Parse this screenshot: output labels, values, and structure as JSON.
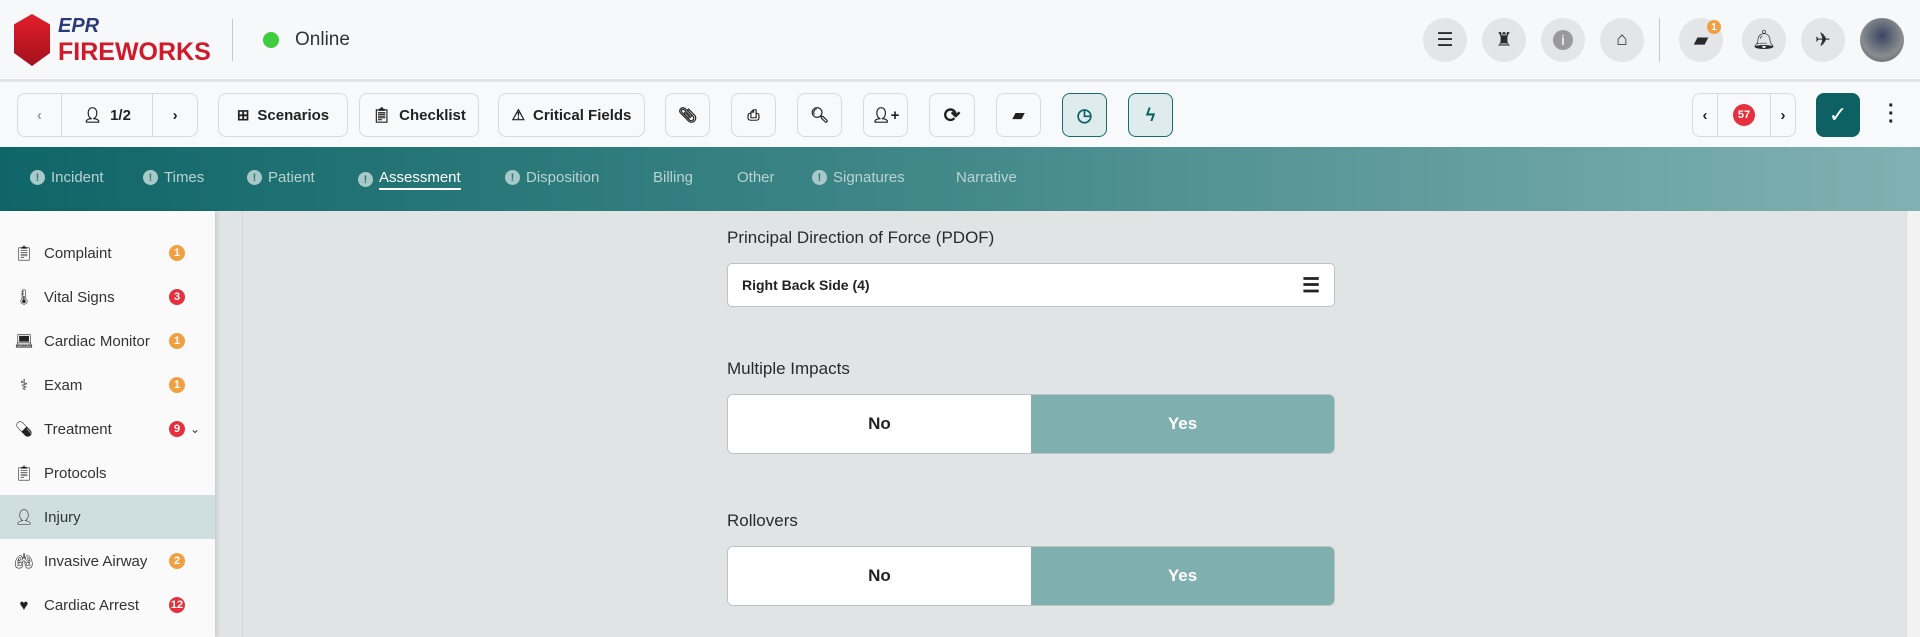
{
  "header": {
    "logo_top": "EPR",
    "logo_bottom": "FIREWORKS",
    "status": "Online",
    "status_color": "#3fcc3f",
    "icons": [
      "list-icon",
      "chess-rook-icon",
      "info-icon",
      "home-icon",
      "chat-icon",
      "bell-icon",
      "airplane-icon"
    ],
    "chat_badge": "1"
  },
  "toolbar": {
    "page": "1/2",
    "scenarios": "Scenarios",
    "checklist": "Checklist",
    "critical_fields": "Critical Fields",
    "error_count": "57"
  },
  "tabs": [
    {
      "label": "Incident",
      "alert": true
    },
    {
      "label": "Times",
      "alert": true
    },
    {
      "label": "Patient",
      "alert": true
    },
    {
      "label": "Assessment",
      "alert": true,
      "active": true
    },
    {
      "label": "Disposition",
      "alert": true
    },
    {
      "label": "Billing"
    },
    {
      "label": "Other"
    },
    {
      "label": "Signatures",
      "alert": true
    },
    {
      "label": "Narrative"
    }
  ],
  "sidebar": {
    "items": [
      {
        "label": "Complaint",
        "badge": "1",
        "badge_color": "#f0a040"
      },
      {
        "label": "Vital Signs",
        "badge": "3",
        "badge_color": "#e5303d"
      },
      {
        "label": "Cardiac Monitor",
        "badge": "1",
        "badge_color": "#f0a040"
      },
      {
        "label": "Exam",
        "badge": "1",
        "badge_color": "#f0a040"
      },
      {
        "label": "Treatment",
        "badge": "9",
        "badge_color": "#e5303d"
      },
      {
        "label": "Protocols"
      },
      {
        "label": "Injury",
        "active": true
      },
      {
        "label": "Invasive Airway",
        "badge": "2",
        "badge_color": "#f0a040"
      },
      {
        "label": "Cardiac Arrest",
        "badge": "12",
        "badge_color": "#e5303d"
      }
    ]
  },
  "form": {
    "pdof_label": "Principal Direction of Force (PDOF)",
    "pdof_value": "Right Back Side (4)",
    "multiple_impacts_label": "Multiple Impacts",
    "multiple_impacts_value": "Yes",
    "rollovers_label": "Rollovers",
    "rollovers_value": "Yes",
    "no": "No",
    "yes": "Yes"
  },
  "colors": {
    "teal": "#0e6163",
    "selected": "#80afb0"
  }
}
